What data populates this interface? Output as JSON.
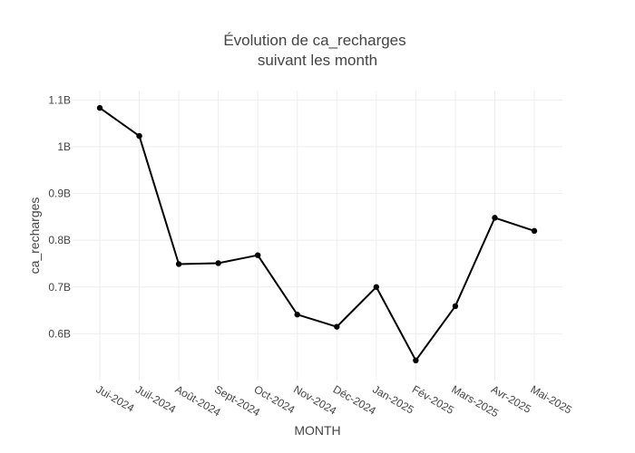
{
  "chart_data": {
    "type": "line",
    "title_line1": "Évolution de ca_recharges",
    "title_line2": "suivant les month",
    "xlabel": "MONTH",
    "ylabel": "ca_recharges",
    "categories": [
      "Jui-2024",
      "Juil-2024",
      "Août-2024",
      "Sept-2024",
      "Oct-2024",
      "Nov-2024",
      "Déc-2024",
      "Jan-2025",
      "Fév-2025",
      "Mars-2025",
      "Avr-2025",
      "Mai-2025"
    ],
    "series": [
      {
        "values": [
          1.083,
          1.023,
          0.749,
          0.751,
          0.768,
          0.641,
          0.615,
          0.7,
          0.543,
          0.659,
          0.848,
          0.82
        ],
        "unit": "B",
        "color": "#000000"
      }
    ],
    "yticks": [
      {
        "value": 0.6,
        "label": "0.6B"
      },
      {
        "value": 0.7,
        "label": "0.7B"
      },
      {
        "value": 0.8,
        "label": "0.8B"
      },
      {
        "value": 0.9,
        "label": "0.9B"
      },
      {
        "value": 1.0,
        "label": "1B"
      },
      {
        "value": 1.1,
        "label": "1.1B"
      }
    ],
    "ylim": [
      0.5,
      1.12
    ],
    "grid": true,
    "legend": "none"
  }
}
